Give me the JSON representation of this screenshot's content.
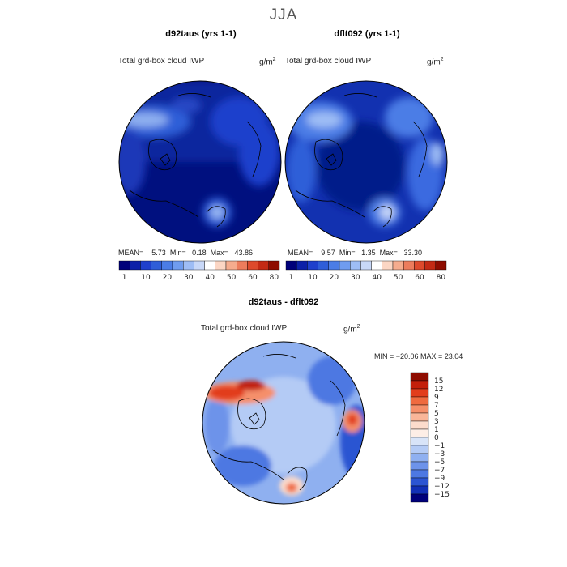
{
  "season_title": "JJA",
  "panels": [
    {
      "title": "d92taus (yrs 1-1)",
      "variable": "Total grd-box cloud IWP",
      "units": "g/m",
      "units_exp": "2",
      "stats": {
        "mean_label": "MEAN=",
        "mean": "5.73",
        "min_label": "Min=",
        "min": "0.18",
        "max_label": "Max=",
        "max": "43.86"
      }
    },
    {
      "title": "dflt092 (yrs 1-1)",
      "variable": "Total grd-box cloud IWP",
      "units": "g/m",
      "units_exp": "2",
      "stats": {
        "mean_label": "MEAN=",
        "mean": "9.57",
        "min_label": "Min=",
        "min": "1.35",
        "max_label": "Max=",
        "max": "33.30"
      }
    }
  ],
  "colorbar_abs": {
    "tick_labels": [
      "1",
      "10",
      "20",
      "30",
      "40",
      "50",
      "60",
      "80"
    ],
    "colors": [
      "#00007a",
      "#0c20a8",
      "#1f40cc",
      "#2f5ed8",
      "#4b7de6",
      "#6f9cef",
      "#9ebdf5",
      "#c8d8f8",
      "#ffffff",
      "#fbd6c4",
      "#f5ac8e",
      "#ec7c5c",
      "#dd4a2c",
      "#c32a14",
      "#8e0c00"
    ]
  },
  "diff_panel": {
    "title": "d92taus - dflt092",
    "variable": "Total grd-box cloud IWP",
    "units": "g/m",
    "units_exp": "2",
    "stats_text": "MIN = −20.06 MAX =  23.04",
    "legend_labels": [
      "15",
      "12",
      "9",
      "7",
      "5",
      "3",
      "1",
      "0",
      "−1",
      "−3",
      "−5",
      "−7",
      "−9",
      "−12",
      "−15"
    ],
    "legend_colors": [
      "#8e0c00",
      "#c31f0a",
      "#e23d1c",
      "#ef6a3f",
      "#f58f6a",
      "#f9b699",
      "#fcdccc",
      "#fdeee6",
      "#d8e4f8",
      "#b4cbf5",
      "#8fb0f0",
      "#6d93ea",
      "#4d78e2",
      "#2c55d2",
      "#1230b6",
      "#00007a"
    ]
  },
  "chart_data": [
    {
      "type": "heatmap",
      "title": "d92taus (yrs 1-1)",
      "subtitle": "Total grd-box cloud IWP",
      "units": "g/m2",
      "projection": "north polar stereographic",
      "season": "JJA",
      "summary": {
        "mean": 5.73,
        "min": 0.18,
        "max": 43.86
      },
      "color_levels": [
        1,
        10,
        20,
        30,
        40,
        50,
        60,
        80
      ]
    },
    {
      "type": "heatmap",
      "title": "dflt092 (yrs 1-1)",
      "subtitle": "Total grd-box cloud IWP",
      "units": "g/m2",
      "projection": "north polar stereographic",
      "season": "JJA",
      "summary": {
        "mean": 9.57,
        "min": 1.35,
        "max": 33.3
      },
      "color_levels": [
        1,
        10,
        20,
        30,
        40,
        50,
        60,
        80
      ]
    },
    {
      "type": "heatmap",
      "title": "d92taus - dflt092",
      "subtitle": "Total grd-box cloud IWP",
      "units": "g/m2",
      "projection": "north polar stereographic",
      "season": "JJA",
      "summary": {
        "min": -20.06,
        "max": 23.04
      },
      "color_levels": [
        -15,
        -12,
        -9,
        -7,
        -5,
        -3,
        -1,
        0,
        1,
        3,
        5,
        7,
        9,
        12,
        15
      ]
    }
  ]
}
